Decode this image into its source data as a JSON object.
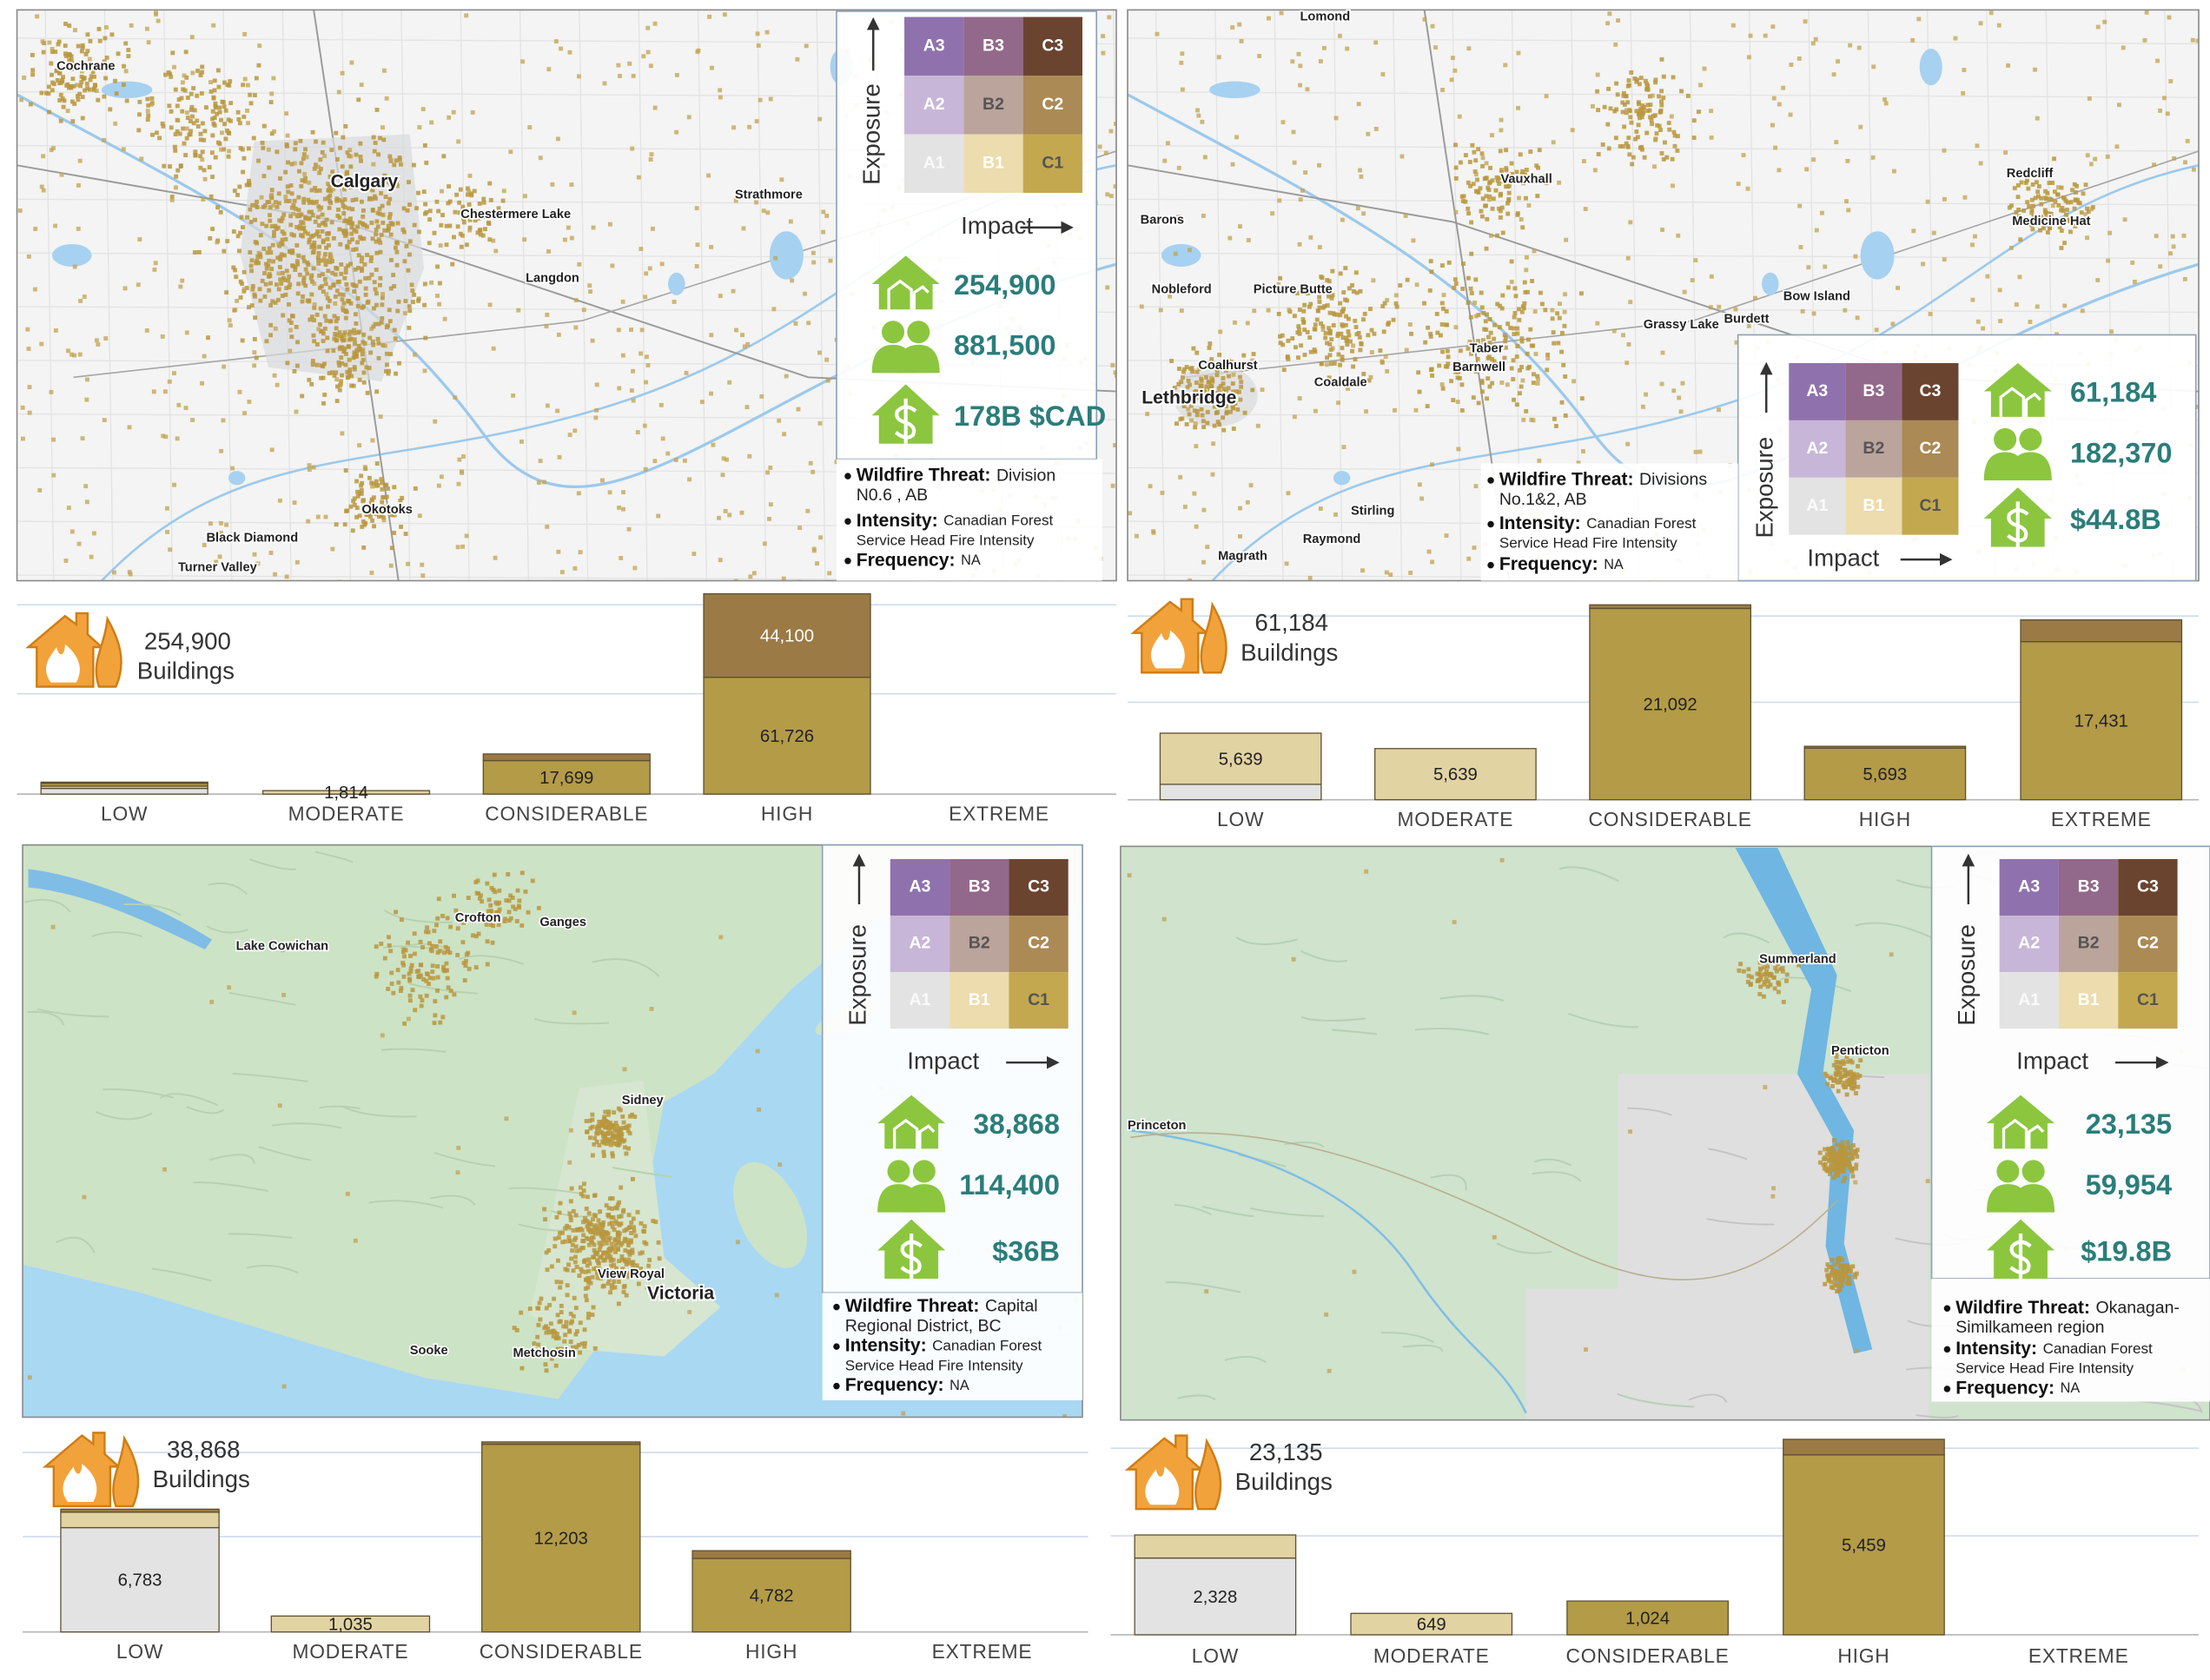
{
  "panels": [
    {
      "map_labels": [
        "Cochrane",
        "Calgary",
        "Chestermere Lake",
        "Strathmore",
        "Langdon",
        "Okotoks",
        "Black Diamond",
        "Turner Valley"
      ],
      "legend": {
        "exposure": "Exposure",
        "impact": "Impact",
        "cells": [
          "A3",
          "B3",
          "C3",
          "A2",
          "B2",
          "C2",
          "A1",
          "B1",
          "C1"
        ]
      },
      "stats": [
        "254,900",
        "881,500",
        "178B $CAD"
      ],
      "info": [
        {
          "label": "Wildfire Threat:",
          "lines": [
            "Division",
            "N0.6 , AB"
          ]
        },
        {
          "label": "Intensity:",
          "lines": [
            "Canadian Forest",
            "Service Head Fire Intensity"
          ]
        },
        {
          "label": "Frequency:",
          "lines": [
            "NA"
          ]
        }
      ]
    },
    {
      "map_labels": [
        "Lomond",
        "Vauxhall",
        "Barons",
        "Nobleford",
        "Picture Butte",
        "Coalhurst",
        "Lethbridge",
        "Coaldale",
        "Taber",
        "Barnwell",
        "Grassy Lake",
        "Burdett",
        "Bow Island",
        "Redcliff",
        "Medicine Hat",
        "Stirling",
        "Raymond",
        "Magrath"
      ],
      "legend": {
        "exposure": "Exposure",
        "impact": "Impact",
        "cells": [
          "A3",
          "B3",
          "C3",
          "A2",
          "B2",
          "C2",
          "A1",
          "B1",
          "C1"
        ]
      },
      "stats": [
        "61,184",
        "182,370",
        "$44.8B"
      ],
      "info": [
        {
          "label": "Wildfire Threat:",
          "lines": [
            "Divisions",
            "No.1&2, AB"
          ]
        },
        {
          "label": "Intensity:",
          "lines": [
            "Canadian Forest",
            "Service Head Fire Intensity"
          ]
        },
        {
          "label": "Frequency:",
          "lines": [
            "NA"
          ]
        }
      ]
    },
    {
      "map_labels": [
        "Lake Cowichan",
        "Crofton",
        "Ganges",
        "Sidney",
        "View Royal",
        "Victoria",
        "Sooke",
        "Metchosin"
      ],
      "legend": {
        "exposure": "Exposure",
        "impact": "Impact",
        "cells": [
          "A3",
          "B3",
          "C3",
          "A2",
          "B2",
          "C2",
          "A1",
          "B1",
          "C1"
        ]
      },
      "stats": [
        "38,868",
        "114,400",
        "$36B"
      ],
      "info": [
        {
          "label": "Wildfire Threat:",
          "lines": [
            "Capital",
            "Regional District, BC"
          ]
        },
        {
          "label": "Intensity:",
          "lines": [
            "Canadian Forest",
            "Service Head Fire Intensity"
          ]
        },
        {
          "label": "Frequency:",
          "lines": [
            "NA"
          ]
        }
      ]
    },
    {
      "map_labels": [
        "Summerland",
        "Penticton",
        "Princeton"
      ],
      "legend": {
        "exposure": "Exposure",
        "impact": "Impact",
        "cells": [
          "A3",
          "B3",
          "C3",
          "A2",
          "B2",
          "C2",
          "A1",
          "B1",
          "C1"
        ]
      },
      "stats": [
        "23,135",
        "59,954",
        "$19.8B"
      ],
      "info": [
        {
          "label": "Wildfire Threat:",
          "lines": [
            "Okanagan-",
            "Similkameen region"
          ]
        },
        {
          "label": "Intensity:",
          "lines": [
            "Canadian Forest",
            "Service Head Fire Intensity"
          ]
        },
        {
          "label": "Frequency:",
          "lines": [
            "NA"
          ]
        }
      ]
    }
  ],
  "chart_data": [
    {
      "type": "bar",
      "stacked": true,
      "total": "254,900",
      "unit": "Buildings",
      "categories": [
        "LOW",
        "MODERATE",
        "CONSIDERABLE",
        "HIGH",
        "EXTREME"
      ],
      "ylim": [
        0,
        106000
      ],
      "series": [
        {
          "color": "#e3e3e3",
          "values": [
            3000,
            0,
            0,
            0,
            0
          ]
        },
        {
          "color": "#e2d3a3",
          "values": [
            1200,
            1814,
            0,
            0,
            0
          ],
          "value_labels": [
            null,
            "1,814",
            null,
            null,
            null
          ]
        },
        {
          "color": "#b39b48",
          "values": [
            1500,
            0,
            17699,
            61726,
            0
          ],
          "value_labels": [
            null,
            null,
            "17,699",
            "61,726",
            null
          ]
        },
        {
          "color": "#9c7a45",
          "values": [
            600,
            0,
            3500,
            44100,
            0
          ],
          "value_labels": [
            null,
            null,
            null,
            "44,100",
            null
          ]
        }
      ]
    },
    {
      "type": "bar",
      "stacked": true,
      "total": "61,184",
      "unit": "Buildings",
      "categories": [
        "LOW",
        "MODERATE",
        "CONSIDERABLE",
        "HIGH",
        "EXTREME"
      ],
      "ylim": [
        0,
        21500
      ],
      "series": [
        {
          "color": "#e3e3e3",
          "values": [
            1700,
            0,
            0,
            0,
            0
          ]
        },
        {
          "color": "#e2d3a3",
          "values": [
            5639,
            5639,
            0,
            0,
            0
          ],
          "value_labels": [
            "5,639",
            "5,639",
            null,
            null,
            null
          ]
        },
        {
          "color": "#b39b48",
          "values": [
            0,
            0,
            21092,
            5693,
            17431
          ],
          "value_labels": [
            null,
            null,
            "21,092",
            "5,693",
            "17,431"
          ]
        },
        {
          "color": "#9c7a45",
          "values": [
            0,
            0,
            400,
            200,
            2400
          ]
        }
      ]
    },
    {
      "type": "bar",
      "stacked": true,
      "total": "38,868",
      "unit": "Buildings",
      "categories": [
        "LOW",
        "MODERATE",
        "CONSIDERABLE",
        "HIGH",
        "EXTREME"
      ],
      "ylim": [
        0,
        12400
      ],
      "series": [
        {
          "color": "#e3e3e3",
          "values": [
            6783,
            0,
            0,
            0,
            0
          ],
          "value_labels": [
            "6,783",
            null,
            null,
            null,
            null
          ]
        },
        {
          "color": "#e2d3a3",
          "values": [
            1000,
            1035,
            0,
            0,
            0
          ],
          "value_labels": [
            null,
            "1,035",
            null,
            null,
            null
          ]
        },
        {
          "color": "#b39b48",
          "values": [
            0,
            0,
            12203,
            4782,
            0
          ],
          "value_labels": [
            null,
            null,
            "12,203",
            "4,782",
            null
          ]
        },
        {
          "color": "#9c7a45",
          "values": [
            200,
            0,
            150,
            500,
            0
          ]
        }
      ]
    },
    {
      "type": "bar",
      "stacked": true,
      "total": "23,135",
      "unit": "Buildings",
      "categories": [
        "LOW",
        "MODERATE",
        "CONSIDERABLE",
        "HIGH",
        "EXTREME"
      ],
      "ylim": [
        0,
        6000
      ],
      "series": [
        {
          "color": "#e3e3e3",
          "values": [
            2328,
            0,
            0,
            0,
            0
          ],
          "value_labels": [
            "2,328",
            null,
            null,
            null,
            null
          ]
        },
        {
          "color": "#e2d3a3",
          "values": [
            700,
            649,
            0,
            0,
            0
          ],
          "value_labels": [
            null,
            "649",
            null,
            null,
            null
          ]
        },
        {
          "color": "#b39b48",
          "values": [
            0,
            0,
            1024,
            5459,
            0
          ],
          "value_labels": [
            null,
            null,
            "1,024",
            "5,459",
            null
          ]
        },
        {
          "color": "#9c7a45",
          "values": [
            0,
            0,
            0,
            470,
            0
          ]
        }
      ]
    }
  ]
}
